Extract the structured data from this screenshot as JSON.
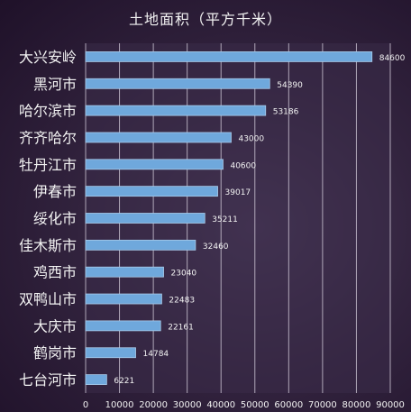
{
  "chart_data": {
    "type": "bar",
    "orientation": "horizontal",
    "title": "土地面积（平方千米）",
    "categories": [
      "大兴安岭",
      "黑河市",
      "哈尔滨市",
      "齐齐哈尔",
      "牡丹江市",
      "伊春市",
      "绥化市",
      "佳木斯市",
      "鸡西市",
      "双鸭山市",
      "大庆市",
      "鹤岗市",
      "七台河市"
    ],
    "values": [
      84600,
      54390,
      53186,
      43000,
      40600,
      39017,
      35211,
      32460,
      23040,
      22483,
      22161,
      14784,
      6221
    ],
    "xlim": [
      0,
      90000
    ],
    "xticks": [
      "0",
      "10000",
      "20000",
      "30000",
      "40000",
      "50000",
      "60000",
      "70000",
      "80000",
      "90000"
    ],
    "grid": true,
    "legend": "none",
    "colors": {
      "bar": "#6fa8dc",
      "bar_border": "#a9cbea",
      "text": "#f2f2f2",
      "grid": "#d9d2e0",
      "plot_background": "#3a2c48"
    }
  }
}
